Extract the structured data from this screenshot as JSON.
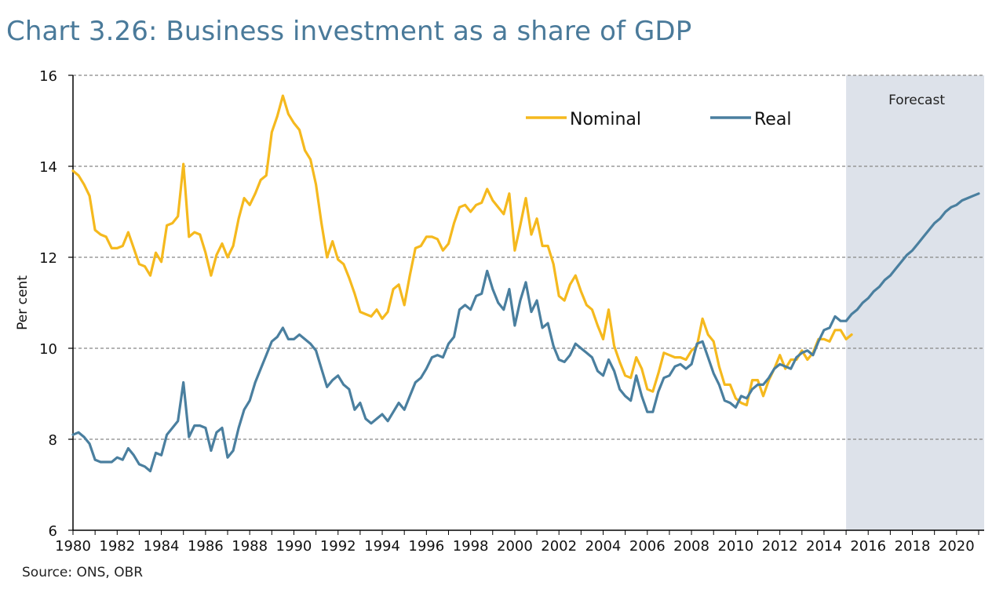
{
  "title": "Chart 3.26: Business investment as a share of GDP",
  "source": "Source: ONS, OBR",
  "colors": {
    "nominal": "#f5b91e",
    "real": "#4a7f9f",
    "forecast_shade": "#dde2ea",
    "grid": "#888888",
    "axis": "#000000",
    "title": "#4a7a9a"
  },
  "chart_data": {
    "type": "line",
    "ylabel": "Per cent",
    "xlabel": "",
    "ylim": [
      6,
      16
    ],
    "yticks": [
      6,
      8,
      10,
      12,
      14,
      16
    ],
    "xlim": [
      1980,
      2021.25
    ],
    "xticks": [
      "1980",
      "1982",
      "1984",
      "1986",
      "1988",
      "1990",
      "1992",
      "1994",
      "1996",
      "1998",
      "2000",
      "2002",
      "2004",
      "2006",
      "2008",
      "2010",
      "2012",
      "2014",
      "2016",
      "2018",
      "2020"
    ],
    "grid": "horizontal dashed",
    "legend_position": "top-center",
    "annotations": [
      {
        "text": "Forecast",
        "x_start": 2015.0,
        "x_end": 2021.25
      }
    ],
    "series": [
      {
        "name": "Nominal",
        "x_start": 1980.0,
        "step": 0.25,
        "values": [
          13.9,
          13.8,
          13.6,
          13.35,
          12.6,
          12.5,
          12.45,
          12.2,
          12.2,
          12.25,
          12.55,
          12.2,
          11.85,
          11.8,
          11.6,
          12.1,
          11.9,
          12.7,
          12.75,
          12.9,
          14.05,
          12.45,
          12.55,
          12.5,
          12.1,
          11.6,
          12.05,
          12.3,
          12.0,
          12.25,
          12.85,
          13.3,
          13.15,
          13.4,
          13.7,
          13.8,
          14.75,
          15.1,
          15.55,
          15.15,
          14.95,
          14.8,
          14.35,
          14.15,
          13.6,
          12.75,
          12.0,
          12.35,
          11.95,
          11.85,
          11.55,
          11.2,
          10.8,
          10.75,
          10.7,
          10.85,
          10.65,
          10.8,
          11.3,
          11.4,
          10.95,
          11.6,
          12.2,
          12.25,
          12.45,
          12.45,
          12.4,
          12.15,
          12.3,
          12.75,
          13.1,
          13.15,
          13.0,
          13.15,
          13.2,
          13.5,
          13.25,
          13.1,
          12.95,
          13.4,
          12.15,
          12.7,
          13.3,
          12.5,
          12.85,
          12.25,
          12.25,
          11.85,
          11.15,
          11.05,
          11.4,
          11.6,
          11.25,
          10.95,
          10.85,
          10.5,
          10.2,
          10.85,
          10.05,
          9.7,
          9.4,
          9.35,
          9.8,
          9.55,
          9.1,
          9.05,
          9.45,
          9.9,
          9.85,
          9.8,
          9.8,
          9.75,
          9.95,
          10.05,
          10.65,
          10.3,
          10.15,
          9.6,
          9.2,
          9.2,
          8.9,
          8.8,
          8.75,
          9.3,
          9.3,
          8.95,
          9.3,
          9.55,
          9.85,
          9.55,
          9.75,
          9.75,
          9.95,
          9.75,
          9.9,
          10.2,
          10.2,
          10.15,
          10.4,
          10.4,
          10.2,
          10.3
        ]
      },
      {
        "name": "Real",
        "x_start": 1980.0,
        "step": 0.25,
        "values": [
          8.1,
          8.15,
          8.05,
          7.9,
          7.55,
          7.5,
          7.5,
          7.5,
          7.6,
          7.55,
          7.8,
          7.65,
          7.45,
          7.4,
          7.3,
          7.7,
          7.65,
          8.1,
          8.25,
          8.4,
          9.25,
          8.05,
          8.3,
          8.3,
          8.25,
          7.75,
          8.15,
          8.25,
          7.6,
          7.75,
          8.25,
          8.65,
          8.85,
          9.25,
          9.55,
          9.85,
          10.15,
          10.25,
          10.45,
          10.2,
          10.2,
          10.3,
          10.2,
          10.1,
          9.95,
          9.55,
          9.15,
          9.3,
          9.4,
          9.2,
          9.1,
          8.65,
          8.8,
          8.45,
          8.35,
          8.45,
          8.55,
          8.4,
          8.6,
          8.8,
          8.65,
          8.95,
          9.25,
          9.35,
          9.55,
          9.8,
          9.85,
          9.8,
          10.1,
          10.25,
          10.85,
          10.95,
          10.85,
          11.15,
          11.2,
          11.7,
          11.3,
          11.0,
          10.85,
          11.3,
          10.5,
          11.05,
          11.45,
          10.8,
          11.05,
          10.45,
          10.55,
          10.05,
          9.75,
          9.7,
          9.85,
          10.1,
          10.0,
          9.9,
          9.8,
          9.5,
          9.4,
          9.75,
          9.5,
          9.1,
          8.95,
          8.85,
          9.4,
          8.95,
          8.6,
          8.6,
          9.05,
          9.35,
          9.4,
          9.6,
          9.65,
          9.55,
          9.65,
          10.1,
          10.15,
          9.8,
          9.45,
          9.2,
          8.85,
          8.8,
          8.7,
          8.95,
          8.9,
          9.1,
          9.2,
          9.2,
          9.35,
          9.55,
          9.65,
          9.6,
          9.55,
          9.8,
          9.9,
          9.95,
          9.85,
          10.15,
          10.4,
          10.45,
          10.7,
          10.6,
          10.6,
          10.75,
          10.85,
          11.0,
          11.1,
          11.25,
          11.35,
          11.5,
          11.6,
          11.75,
          11.9,
          12.05,
          12.15,
          12.3,
          12.45,
          12.6,
          12.75,
          12.85,
          13.0,
          13.1,
          13.15,
          13.25,
          13.3,
          13.35,
          13.4
        ]
      }
    ]
  }
}
